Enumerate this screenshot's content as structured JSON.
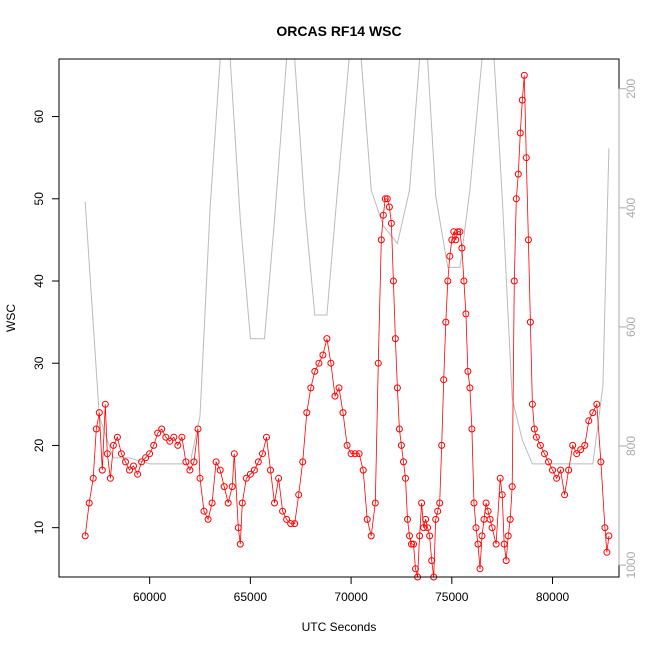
{
  "chart_data": {
    "type": "scatter",
    "title": "ORCAS RF14 WSC",
    "xlabel": "UTC Seconds",
    "ylabel": "WSC",
    "xlim": [
      55500,
      83300
    ],
    "ylim": [
      4,
      67
    ],
    "x_ticks": [
      60000,
      65000,
      70000,
      75000,
      80000
    ],
    "y_ticks": [
      10,
      20,
      30,
      40,
      50,
      60
    ],
    "secondary_axis": {
      "side": "right",
      "ylim_reversed": [
        1020,
        150
      ],
      "ticks": [
        200,
        400,
        600,
        800,
        1000
      ],
      "color": "#aaaaaa"
    },
    "grid": false,
    "series": [
      {
        "marker": "open-circle",
        "color": "#ff0000",
        "connected": true,
        "points": [
          [
            56800,
            9
          ],
          [
            57000,
            13
          ],
          [
            57200,
            16
          ],
          [
            57350,
            22
          ],
          [
            57500,
            24
          ],
          [
            57650,
            17
          ],
          [
            57800,
            25
          ],
          [
            57900,
            19
          ],
          [
            58050,
            16
          ],
          [
            58200,
            20
          ],
          [
            58400,
            21
          ],
          [
            58600,
            19
          ],
          [
            58800,
            18
          ],
          [
            59000,
            17
          ],
          [
            59200,
            17.5
          ],
          [
            59400,
            16.5
          ],
          [
            59600,
            18
          ],
          [
            59800,
            18.5
          ],
          [
            60000,
            19
          ],
          [
            60200,
            20
          ],
          [
            60400,
            21.5
          ],
          [
            60600,
            22
          ],
          [
            60800,
            21
          ],
          [
            61000,
            20.5
          ],
          [
            61200,
            21
          ],
          [
            61400,
            20
          ],
          [
            61600,
            21
          ],
          [
            61800,
            18
          ],
          [
            62000,
            17
          ],
          [
            62200,
            18
          ],
          [
            62400,
            22
          ],
          [
            62500,
            16
          ],
          [
            62700,
            12
          ],
          [
            62900,
            11
          ],
          [
            63100,
            13
          ],
          [
            63300,
            18
          ],
          [
            63500,
            17
          ],
          [
            63700,
            15
          ],
          [
            63900,
            13
          ],
          [
            64100,
            15
          ],
          [
            64200,
            19
          ],
          [
            64400,
            10
          ],
          [
            64500,
            8
          ],
          [
            64600,
            13
          ],
          [
            64800,
            16
          ],
          [
            65000,
            16.5
          ],
          [
            65200,
            17
          ],
          [
            65400,
            18
          ],
          [
            65600,
            19
          ],
          [
            65800,
            21
          ],
          [
            66000,
            17
          ],
          [
            66200,
            13
          ],
          [
            66400,
            16
          ],
          [
            66600,
            12
          ],
          [
            66800,
            11
          ],
          [
            67000,
            10.5
          ],
          [
            67200,
            10.5
          ],
          [
            67400,
            14
          ],
          [
            67600,
            18
          ],
          [
            67800,
            24
          ],
          [
            68000,
            27
          ],
          [
            68200,
            29
          ],
          [
            68400,
            30
          ],
          [
            68600,
            31
          ],
          [
            68800,
            33
          ],
          [
            69000,
            30
          ],
          [
            69200,
            26
          ],
          [
            69400,
            27
          ],
          [
            69600,
            24
          ],
          [
            69800,
            20
          ],
          [
            70000,
            19
          ],
          [
            70200,
            19
          ],
          [
            70400,
            19
          ],
          [
            70600,
            17
          ],
          [
            70800,
            11
          ],
          [
            71000,
            9
          ],
          [
            71200,
            13
          ],
          [
            71350,
            30
          ],
          [
            71500,
            45
          ],
          [
            71600,
            48
          ],
          [
            71700,
            50
          ],
          [
            71800,
            50
          ],
          [
            71900,
            49
          ],
          [
            72000,
            47
          ],
          [
            72100,
            40
          ],
          [
            72200,
            33
          ],
          [
            72300,
            27
          ],
          [
            72400,
            22
          ],
          [
            72500,
            20
          ],
          [
            72600,
            18
          ],
          [
            72700,
            16
          ],
          [
            72800,
            11
          ],
          [
            72900,
            9
          ],
          [
            73000,
            8
          ],
          [
            73100,
            8
          ],
          [
            73200,
            5
          ],
          [
            73300,
            4
          ],
          [
            73400,
            9
          ],
          [
            73500,
            13
          ],
          [
            73600,
            10
          ],
          [
            73700,
            11
          ],
          [
            73800,
            10
          ],
          [
            73900,
            9
          ],
          [
            74000,
            6
          ],
          [
            74100,
            4
          ],
          [
            74200,
            11
          ],
          [
            74300,
            12
          ],
          [
            74400,
            13
          ],
          [
            74500,
            20
          ],
          [
            74600,
            28
          ],
          [
            74700,
            35
          ],
          [
            74800,
            40
          ],
          [
            74900,
            43
          ],
          [
            75000,
            45
          ],
          [
            75100,
            46
          ],
          [
            75200,
            45
          ],
          [
            75300,
            46
          ],
          [
            75400,
            46
          ],
          [
            75500,
            44
          ],
          [
            75600,
            40
          ],
          [
            75700,
            36
          ],
          [
            75800,
            29
          ],
          [
            75900,
            27
          ],
          [
            76000,
            22
          ],
          [
            76100,
            13
          ],
          [
            76200,
            10
          ],
          [
            76300,
            8
          ],
          [
            76400,
            5
          ],
          [
            76500,
            9
          ],
          [
            76600,
            11
          ],
          [
            76700,
            13
          ],
          [
            76800,
            12
          ],
          [
            76900,
            11
          ],
          [
            77000,
            10
          ],
          [
            77200,
            8
          ],
          [
            77400,
            16
          ],
          [
            77500,
            14
          ],
          [
            77600,
            8
          ],
          [
            77700,
            6
          ],
          [
            77800,
            9
          ],
          [
            77900,
            11
          ],
          [
            78000,
            15
          ],
          [
            78100,
            40
          ],
          [
            78200,
            50
          ],
          [
            78300,
            53
          ],
          [
            78400,
            58
          ],
          [
            78500,
            62
          ],
          [
            78600,
            65
          ],
          [
            78700,
            55
          ],
          [
            78800,
            45
          ],
          [
            78900,
            35
          ],
          [
            79000,
            25
          ],
          [
            79100,
            22
          ],
          [
            79200,
            21
          ],
          [
            79400,
            20
          ],
          [
            79600,
            19
          ],
          [
            79800,
            18
          ],
          [
            80000,
            17
          ],
          [
            80200,
            16
          ],
          [
            80400,
            17
          ],
          [
            80600,
            14
          ],
          [
            80800,
            17
          ],
          [
            81000,
            20
          ],
          [
            81200,
            19
          ],
          [
            81400,
            19.5
          ],
          [
            81600,
            20
          ],
          [
            81800,
            23
          ],
          [
            82000,
            24
          ],
          [
            82200,
            25
          ],
          [
            82400,
            18
          ],
          [
            82600,
            10
          ],
          [
            82700,
            7
          ],
          [
            82800,
            9
          ]
        ]
      },
      {
        "color": "#bbbbbb",
        "axis": "right",
        "points": [
          [
            56800,
            390
          ],
          [
            57500,
            750
          ],
          [
            58200,
            820
          ],
          [
            59000,
            820
          ],
          [
            60000,
            830
          ],
          [
            61000,
            830
          ],
          [
            62000,
            830
          ],
          [
            62500,
            750
          ],
          [
            63000,
            400
          ],
          [
            63500,
            150
          ],
          [
            64000,
            150
          ],
          [
            64500,
            420
          ],
          [
            65000,
            620
          ],
          [
            65700,
            620
          ],
          [
            66200,
            420
          ],
          [
            66800,
            150
          ],
          [
            67200,
            150
          ],
          [
            67700,
            400
          ],
          [
            68200,
            580
          ],
          [
            68800,
            580
          ],
          [
            69300,
            380
          ],
          [
            69900,
            150
          ],
          [
            70500,
            150
          ],
          [
            71000,
            370
          ],
          [
            71600,
            430
          ],
          [
            72300,
            460
          ],
          [
            72900,
            370
          ],
          [
            73400,
            150
          ],
          [
            73800,
            150
          ],
          [
            74200,
            380
          ],
          [
            74800,
            500
          ],
          [
            75400,
            500
          ],
          [
            75900,
            370
          ],
          [
            76500,
            150
          ],
          [
            77100,
            150
          ],
          [
            77500,
            380
          ],
          [
            78000,
            720
          ],
          [
            78500,
            790
          ],
          [
            79000,
            830
          ],
          [
            80000,
            830
          ],
          [
            81000,
            830
          ],
          [
            82000,
            830
          ],
          [
            82500,
            700
          ],
          [
            82800,
            300
          ]
        ]
      }
    ]
  }
}
